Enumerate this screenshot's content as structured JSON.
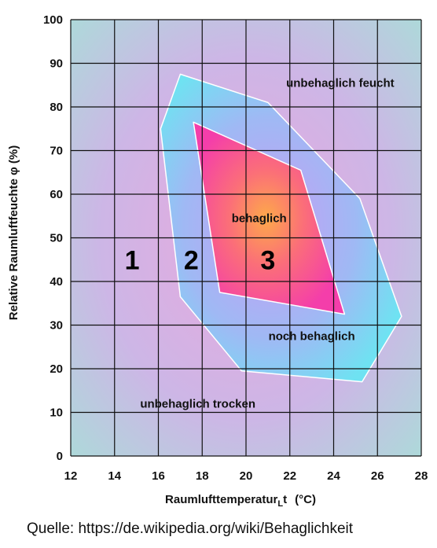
{
  "chart_data": {
    "type": "area",
    "xlabel": "Raumlufttemperatur",
    "xlabel_symbol": "t",
    "xlabel_subscript": "L",
    "xlabel_unit": "(°C)",
    "ylabel": "Relative Raumluftfeuchte φ (%)",
    "xlim": [
      12,
      28
    ],
    "ylim": [
      0,
      100
    ],
    "x_ticks": [
      12,
      14,
      16,
      18,
      20,
      22,
      24,
      26,
      28
    ],
    "y_ticks": [
      0,
      10,
      20,
      30,
      40,
      50,
      60,
      70,
      80,
      90,
      100
    ],
    "grid": true,
    "regions": [
      {
        "name": "noch behaglich",
        "color": "#6fd6ee",
        "points": [
          [
            17.0,
            87.5
          ],
          [
            21.0,
            81.0
          ],
          [
            25.2,
            59.0
          ],
          [
            27.1,
            32.0
          ],
          [
            25.3,
            17.0
          ],
          [
            19.8,
            19.5
          ],
          [
            17.0,
            36.5
          ],
          [
            16.1,
            75.0
          ]
        ]
      },
      {
        "name": "behaglich",
        "color": "#f95a86",
        "points": [
          [
            17.6,
            76.5
          ],
          [
            22.5,
            65.5
          ],
          [
            24.5,
            32.5
          ],
          [
            18.8,
            37.5
          ]
        ]
      }
    ],
    "zone_labels": [
      {
        "text": "unbehaglich feucht",
        "x": 24.3,
        "y": 85.5
      },
      {
        "text": "behaglich",
        "x": 20.6,
        "y": 54.5
      },
      {
        "text": "noch behaglich",
        "x": 23.0,
        "y": 27.5
      },
      {
        "text": "unbehaglich trocken",
        "x": 17.8,
        "y": 12.0
      }
    ],
    "zone_numbers": [
      {
        "text": "1",
        "x": 14.8,
        "y": 45.0
      },
      {
        "text": "2",
        "x": 17.5,
        "y": 45.0
      },
      {
        "text": "3",
        "x": 21.0,
        "y": 45.0
      }
    ]
  },
  "source": "Quelle: https://de.wikipedia.org/wiki/Behaglichkeit"
}
